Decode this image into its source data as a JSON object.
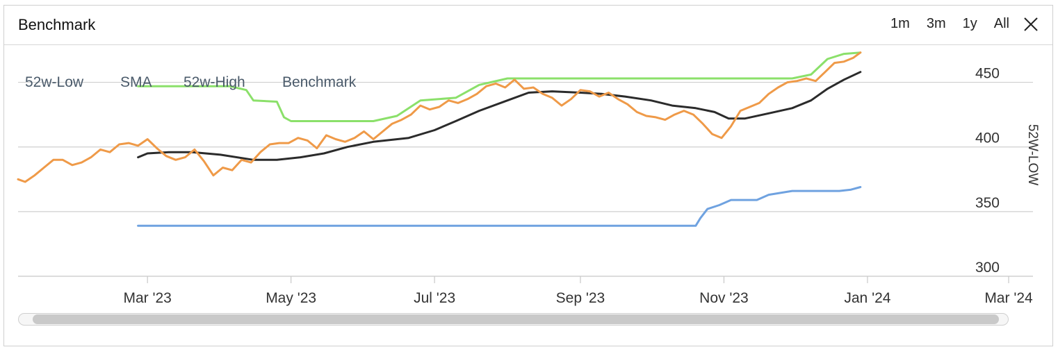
{
  "header": {
    "title": "Benchmark",
    "ranges": [
      "1m",
      "3m",
      "1y",
      "All"
    ],
    "close_icon": "close-icon"
  },
  "chart_data": {
    "type": "line",
    "title": "Benchmark",
    "ylabel": "52W-LOW",
    "ylim": [
      300,
      475
    ],
    "yticks": [
      300,
      350,
      400,
      450
    ],
    "xlim": [
      "2023-01-05",
      "2024-03-01"
    ],
    "xticks": [
      {
        "date": "2023-03-01",
        "label": "Mar '23"
      },
      {
        "date": "2023-05-01",
        "label": "May '23"
      },
      {
        "date": "2023-07-01",
        "label": "Jul '23"
      },
      {
        "date": "2023-09-01",
        "label": "Sep '23"
      },
      {
        "date": "2023-11-01",
        "label": "Nov '23"
      },
      {
        "date": "2024-01-01",
        "label": "Jan '24"
      },
      {
        "date": "2024-03-01",
        "label": "Mar '24"
      }
    ],
    "grid": "horizontal",
    "legend": "top-left",
    "series": [
      {
        "name": "52w-Low",
        "color": "#6fa2e0",
        "points": [
          [
            "2023-02-25",
            339
          ],
          [
            "2023-10-20",
            339
          ],
          [
            "2023-10-22",
            345
          ],
          [
            "2023-10-25",
            352
          ],
          [
            "2023-10-30",
            355
          ],
          [
            "2023-11-04",
            359
          ],
          [
            "2023-11-15",
            359
          ],
          [
            "2023-11-20",
            363
          ],
          [
            "2023-11-30",
            366
          ],
          [
            "2023-12-20",
            366
          ],
          [
            "2023-12-25",
            367
          ],
          [
            "2023-12-29",
            369
          ]
        ]
      },
      {
        "name": "SMA",
        "color": "#2b2b2b",
        "points": [
          [
            "2023-02-25",
            392
          ],
          [
            "2023-03-01",
            395
          ],
          [
            "2023-03-10",
            396
          ],
          [
            "2023-03-20",
            396
          ],
          [
            "2023-04-01",
            394
          ],
          [
            "2023-04-15",
            390
          ],
          [
            "2023-04-25",
            390
          ],
          [
            "2023-05-05",
            392
          ],
          [
            "2023-05-15",
            395
          ],
          [
            "2023-05-25",
            400
          ],
          [
            "2023-06-05",
            404
          ],
          [
            "2023-06-20",
            407
          ],
          [
            "2023-07-01",
            413
          ],
          [
            "2023-07-10",
            420
          ],
          [
            "2023-07-20",
            428
          ],
          [
            "2023-08-01",
            436
          ],
          [
            "2023-08-10",
            442
          ],
          [
            "2023-08-20",
            443
          ],
          [
            "2023-09-01",
            442
          ],
          [
            "2023-09-10",
            441
          ],
          [
            "2023-09-20",
            439
          ],
          [
            "2023-10-01",
            436
          ],
          [
            "2023-10-10",
            432
          ],
          [
            "2023-10-20",
            430
          ],
          [
            "2023-10-28",
            427
          ],
          [
            "2023-11-03",
            422
          ],
          [
            "2023-11-10",
            422
          ],
          [
            "2023-11-20",
            426
          ],
          [
            "2023-11-30",
            430
          ],
          [
            "2023-12-08",
            436
          ],
          [
            "2023-12-15",
            445
          ],
          [
            "2023-12-22",
            452
          ],
          [
            "2023-12-29",
            458
          ]
        ]
      },
      {
        "name": "52w-High",
        "color": "#8be06a",
        "points": [
          [
            "2023-02-25",
            447
          ],
          [
            "2023-04-05",
            447
          ],
          [
            "2023-04-12",
            444
          ],
          [
            "2023-04-15",
            436
          ],
          [
            "2023-04-25",
            435
          ],
          [
            "2023-04-28",
            423
          ],
          [
            "2023-05-01",
            420
          ],
          [
            "2023-06-05",
            420
          ],
          [
            "2023-06-15",
            424
          ],
          [
            "2023-06-25",
            436
          ],
          [
            "2023-07-10",
            438
          ],
          [
            "2023-07-20",
            448
          ],
          [
            "2023-08-01",
            453
          ],
          [
            "2023-11-30",
            453
          ],
          [
            "2023-12-08",
            456
          ],
          [
            "2023-12-15",
            468
          ],
          [
            "2023-12-22",
            472
          ],
          [
            "2023-12-29",
            473
          ]
        ]
      },
      {
        "name": "Benchmark",
        "color": "#ef9a48",
        "points": [
          [
            "2023-01-05",
            375
          ],
          [
            "2023-01-08",
            373
          ],
          [
            "2023-01-12",
            378
          ],
          [
            "2023-01-16",
            384
          ],
          [
            "2023-01-20",
            390
          ],
          [
            "2023-01-24",
            390
          ],
          [
            "2023-01-28",
            386
          ],
          [
            "2023-02-01",
            388
          ],
          [
            "2023-02-05",
            392
          ],
          [
            "2023-02-09",
            398
          ],
          [
            "2023-02-13",
            396
          ],
          [
            "2023-02-17",
            402
          ],
          [
            "2023-02-21",
            403
          ],
          [
            "2023-02-25",
            401
          ],
          [
            "2023-03-01",
            406
          ],
          [
            "2023-03-05",
            399
          ],
          [
            "2023-03-09",
            393
          ],
          [
            "2023-03-13",
            390
          ],
          [
            "2023-03-17",
            392
          ],
          [
            "2023-03-21",
            398
          ],
          [
            "2023-03-25",
            389
          ],
          [
            "2023-03-29",
            378
          ],
          [
            "2023-04-02",
            384
          ],
          [
            "2023-04-06",
            382
          ],
          [
            "2023-04-10",
            390
          ],
          [
            "2023-04-14",
            388
          ],
          [
            "2023-04-18",
            396
          ],
          [
            "2023-04-22",
            402
          ],
          [
            "2023-04-26",
            403
          ],
          [
            "2023-04-30",
            403
          ],
          [
            "2023-05-04",
            407
          ],
          [
            "2023-05-08",
            405
          ],
          [
            "2023-05-12",
            399
          ],
          [
            "2023-05-16",
            409
          ],
          [
            "2023-05-20",
            406
          ],
          [
            "2023-05-24",
            404
          ],
          [
            "2023-05-28",
            407
          ],
          [
            "2023-06-01",
            412
          ],
          [
            "2023-06-05",
            406
          ],
          [
            "2023-06-09",
            412
          ],
          [
            "2023-06-13",
            418
          ],
          [
            "2023-06-17",
            421
          ],
          [
            "2023-06-21",
            425
          ],
          [
            "2023-06-25",
            432
          ],
          [
            "2023-06-29",
            429
          ],
          [
            "2023-07-03",
            431
          ],
          [
            "2023-07-07",
            436
          ],
          [
            "2023-07-11",
            434
          ],
          [
            "2023-07-15",
            437
          ],
          [
            "2023-07-19",
            441
          ],
          [
            "2023-07-23",
            447
          ],
          [
            "2023-07-27",
            449
          ],
          [
            "2023-07-31",
            446
          ],
          [
            "2023-08-04",
            452
          ],
          [
            "2023-08-08",
            445
          ],
          [
            "2023-08-12",
            446
          ],
          [
            "2023-08-16",
            441
          ],
          [
            "2023-08-20",
            438
          ],
          [
            "2023-08-24",
            432
          ],
          [
            "2023-08-28",
            437
          ],
          [
            "2023-09-01",
            444
          ],
          [
            "2023-09-05",
            443
          ],
          [
            "2023-09-09",
            439
          ],
          [
            "2023-09-13",
            442
          ],
          [
            "2023-09-17",
            437
          ],
          [
            "2023-09-21",
            433
          ],
          [
            "2023-09-25",
            427
          ],
          [
            "2023-09-29",
            424
          ],
          [
            "2023-10-03",
            423
          ],
          [
            "2023-10-07",
            421
          ],
          [
            "2023-10-11",
            425
          ],
          [
            "2023-10-15",
            428
          ],
          [
            "2023-10-19",
            425
          ],
          [
            "2023-10-23",
            418
          ],
          [
            "2023-10-27",
            410
          ],
          [
            "2023-10-31",
            407
          ],
          [
            "2023-11-04",
            416
          ],
          [
            "2023-11-08",
            428
          ],
          [
            "2023-11-12",
            431
          ],
          [
            "2023-11-16",
            434
          ],
          [
            "2023-11-20",
            441
          ],
          [
            "2023-11-24",
            446
          ],
          [
            "2023-11-28",
            450
          ],
          [
            "2023-12-02",
            451
          ],
          [
            "2023-12-06",
            453
          ],
          [
            "2023-12-10",
            451
          ],
          [
            "2023-12-14",
            458
          ],
          [
            "2023-12-18",
            465
          ],
          [
            "2023-12-22",
            466
          ],
          [
            "2023-12-26",
            469
          ],
          [
            "2023-12-29",
            473
          ]
        ]
      }
    ]
  }
}
